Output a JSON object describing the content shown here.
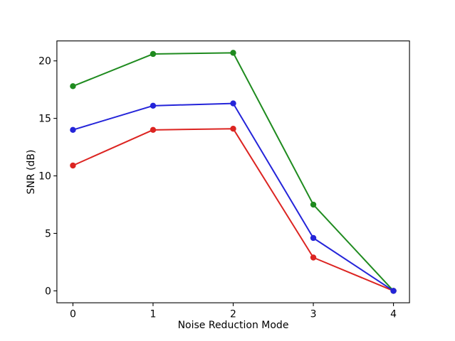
{
  "chart_data": {
    "type": "line",
    "title": "",
    "xlabel": "Noise Reduction Mode",
    "ylabel": "SNR (dB)",
    "x": [
      0,
      1,
      2,
      3,
      4
    ],
    "series": [
      {
        "name": "red-series",
        "color": "#dc2421",
        "marker": "circle",
        "values": [
          10.9,
          14.0,
          14.1,
          2.9,
          0.0
        ]
      },
      {
        "name": "green-series",
        "color": "#1f8b1f",
        "marker": "circle",
        "values": [
          17.8,
          20.6,
          20.7,
          7.5,
          0.0
        ]
      },
      {
        "name": "blue-series",
        "color": "#2424d9",
        "marker": "circle",
        "values": [
          14.0,
          16.1,
          16.3,
          4.6,
          0.0
        ]
      }
    ],
    "xticks": [
      0,
      1,
      2,
      3,
      4
    ],
    "yticks": [
      0,
      5,
      10,
      15,
      20
    ],
    "xlim": [
      -0.2,
      4.2
    ],
    "ylim": [
      -1.035,
      21.735
    ],
    "grid": false,
    "legend": false,
    "axis_color": "#000000",
    "background": "#ffffff"
  }
}
